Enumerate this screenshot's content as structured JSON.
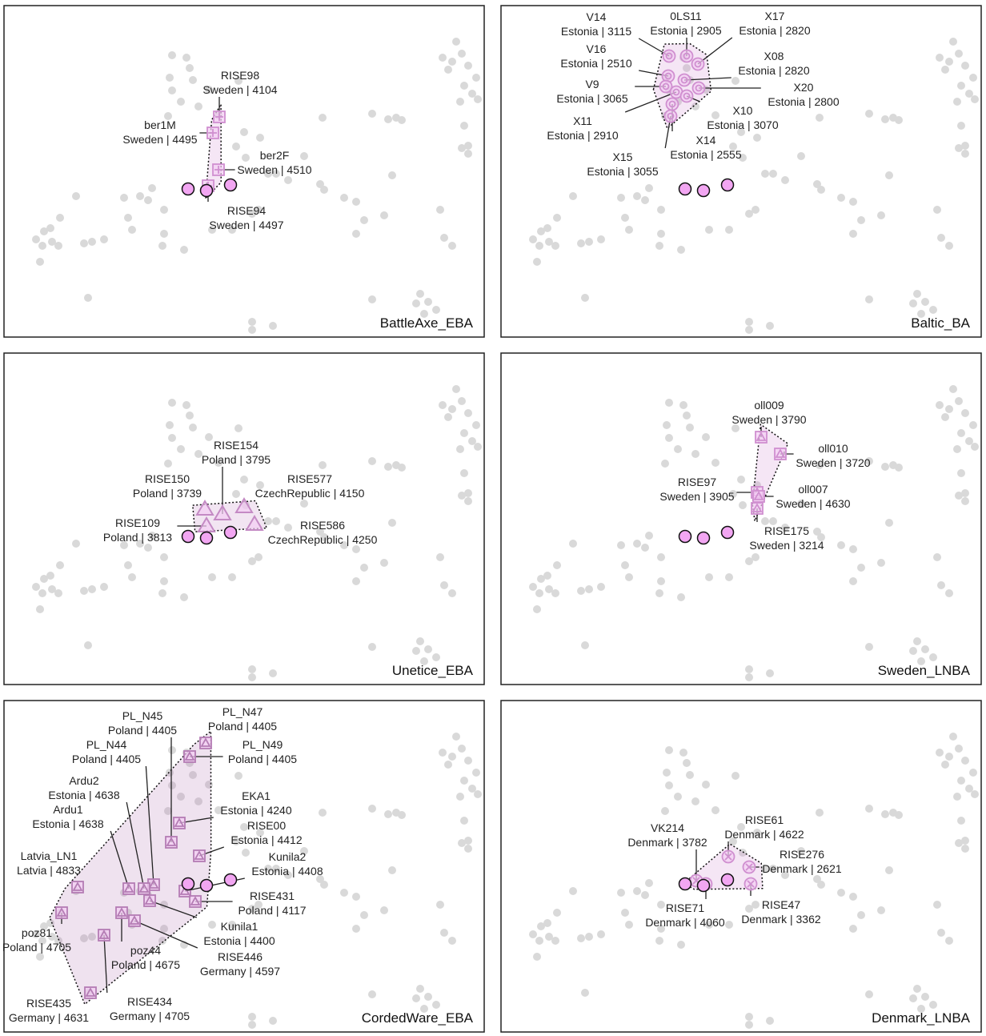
{
  "reference_points": {
    "x": [
      40,
      50,
      58,
      48,
      60,
      68,
      45,
      70,
      100,
      110,
      125,
      105,
      90,
      210,
      228,
      232,
      207,
      236,
      210,
      221,
      243,
      205,
      256,
      293,
      268,
      300,
      290,
      302,
      320,
      330,
      340,
      355,
      375,
      395,
      400,
      425,
      440,
      450,
      440,
      475,
      310,
      318,
      285,
      260,
      170,
      185,
      180,
      150,
      155,
      160,
      200,
      200,
      198,
      225,
      310,
      336,
      310,
      490,
      480,
      497,
      460,
      398,
      565,
      572,
      560,
      548,
      555,
      580,
      590,
      575,
      585,
      570,
      592,
      575,
      580,
      572,
      580,
      520,
      530,
      515,
      540,
      525,
      460,
      545,
      550,
      560,
      485
    ],
    "y": [
      292,
      282,
      278,
      300,
      295,
      300,
      320,
      265,
      297,
      295,
      292,
      365,
      238,
      62,
      65,
      78,
      90,
      93,
      106,
      120,
      126,
      138,
      105,
      94,
      137,
      158,
      176,
      190,
      165,
      210,
      210,
      218,
      188,
      223,
      230,
      240,
      245,
      268,
      285,
      262,
      260,
      255,
      280,
      280,
      238,
      228,
      243,
      240,
      265,
      280,
      285,
      255,
      300,
      305,
      395,
      400,
      405,
      140,
      142,
      143,
      135,
      140,
      45,
      60,
      70,
      65,
      80,
      75,
      90,
      100,
      110,
      120,
      117,
      150,
      175,
      178,
      185,
      360,
      370,
      372,
      380,
      385,
      367,
      255,
      290,
      300,
      212
    ]
  },
  "target_points": {
    "x": [
      230,
      253,
      283
    ],
    "y": [
      229,
      231,
      224
    ]
  },
  "chart_data": [
    {
      "type": "scatter",
      "title": "BattleAxe_EBA",
      "marker": "square-plus",
      "color": "#d08fd0",
      "x": [
        269,
        261,
        268,
        255
      ],
      "y": [
        139,
        159,
        205,
        225
      ],
      "point_labels": [
        "RISE98",
        "ber1M",
        "ber2F",
        "RISE94"
      ],
      "point_details": [
        "Sweden | 4104",
        "Sweden | 4495",
        "Sweden | 4510",
        "Sweden | 4497"
      ]
    },
    {
      "type": "scatter",
      "title": "Baltic_BA",
      "marker": "circle-ring",
      "color": "#d08fd0",
      "x": [
        210,
        232,
        246,
        209,
        229,
        206,
        247,
        219,
        232,
        214,
        212
      ],
      "y": [
        63,
        63,
        73,
        88,
        93,
        101,
        103,
        108,
        113,
        123,
        138
      ],
      "point_labels": [
        "V14",
        "0LS11",
        "X17",
        "V16",
        "X08",
        "V9",
        "X20",
        "X11",
        "X10",
        "X14",
        "X15"
      ],
      "point_details": [
        "Estonia | 3115",
        "Estonia | 2905",
        "Estonia | 2820",
        "Estonia | 2510",
        "Estonia | 2820",
        "Estonia | 3065",
        "Estonia | 2800",
        "Estonia | 2910",
        "Estonia | 3070",
        "Estonia | 2555",
        "Estonia | 3055"
      ]
    },
    {
      "type": "scatter",
      "title": "Unetice_EBA",
      "marker": "triangle",
      "color": "#c48ac4",
      "x": [
        273,
        251,
        300,
        253,
        313
      ],
      "y": [
        201,
        195,
        192,
        216,
        214
      ],
      "point_labels": [
        "RISE154",
        "RISE150",
        "RISE577",
        "RISE109",
        "RISE586"
      ],
      "point_details": [
        "Poland | 3795",
        "Poland | 3739",
        "CzechRepublic | 4150",
        "Poland | 3813",
        "CzechRepublic | 4250"
      ]
    },
    {
      "type": "scatter",
      "title": "Sweden_LNBA",
      "marker": "square-triangle",
      "color": "#d08fd0",
      "x": [
        325,
        349,
        320,
        322,
        320
      ],
      "y": [
        105,
        126,
        174,
        179,
        194
      ],
      "point_labels": [
        "oll009",
        "oll010",
        "RISE97",
        "oll007",
        "RISE175"
      ],
      "point_details": [
        "Sweden | 3790",
        "Sweden | 3720",
        "Sweden | 3905",
        "Sweden | 4630",
        "Sweden | 3214"
      ]
    },
    {
      "type": "scatter",
      "title": "CordedWare_EBA",
      "marker": "square-triangle",
      "color": "#b47cb4",
      "x": [
        209,
        252,
        187,
        232,
        175,
        219,
        156,
        244,
        92,
        226,
        239,
        182,
        72,
        163,
        147,
        108,
        125
      ],
      "y": [
        177,
        53,
        230,
        70,
        235,
        153,
        235,
        194,
        233,
        238,
        251,
        250,
        265,
        275,
        265,
        365,
        293
      ],
      "point_labels": [
        "PL_N45",
        "PL_N47",
        "PL_N44",
        "PL_N49",
        "Ardu2",
        "EKA1",
        "Ardu1",
        "RISE00",
        "Latvia_LN1",
        "Kunila2",
        "RISE431",
        "Kunila1",
        "poz81",
        "RISE446",
        "poz44",
        "RISE435",
        "RISE434"
      ],
      "point_details": [
        "Poland | 4405",
        "Poland | 4405",
        "Poland | 4405",
        "Poland | 4405",
        "Estonia | 4638",
        "Estonia | 4240",
        "Estonia | 4638",
        "Estonia | 4412",
        "Latvia | 4833",
        "Estonia | 4408",
        "Poland | 4117",
        "Estonia | 4400",
        "Poland | 4705",
        "Germany | 4597",
        "Poland | 4675",
        "Germany | 4631",
        "Germany | 4705"
      ]
    },
    {
      "type": "scatter",
      "title": "Denmark_LNBA",
      "marker": "circle-x",
      "color": "#d08fd0",
      "x": [
        244,
        284,
        310,
        256,
        312
      ],
      "y": [
        225,
        195,
        208,
        229,
        229
      ],
      "point_labels": [
        "VK214",
        "RISE61",
        "RISE276",
        "RISE71",
        "RISE47"
      ],
      "point_details": [
        "Denmark | 3782",
        "Denmark | 4622",
        "Denmark | 2621",
        "Denmark | 4060",
        "Denmark | 3362"
      ]
    }
  ]
}
